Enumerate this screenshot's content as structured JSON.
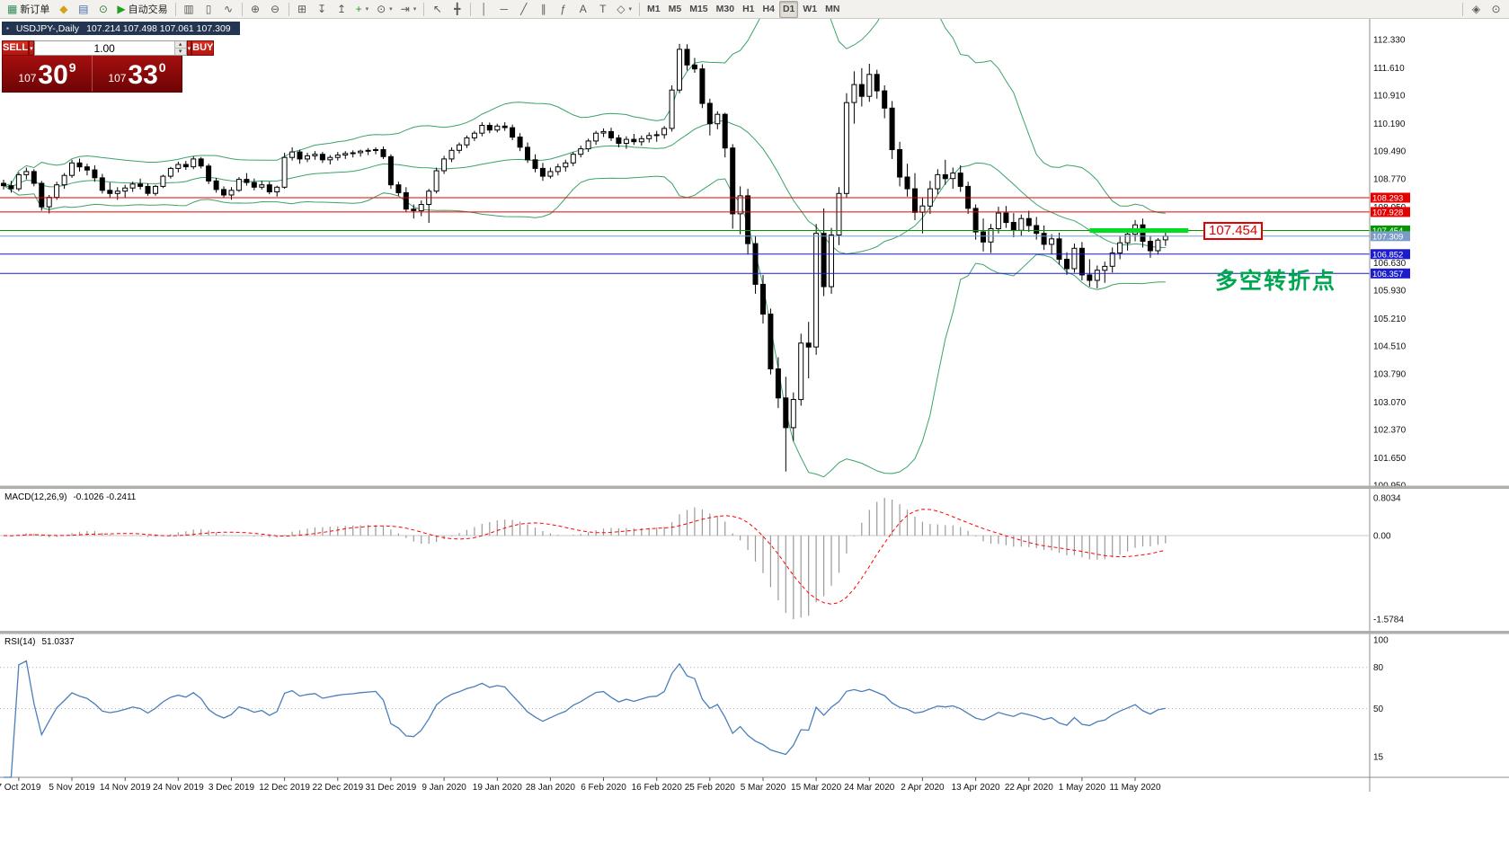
{
  "ui_icons": {
    "chevron_down": "▾",
    "chevron_up": "▴",
    "title_icon": "▪"
  },
  "colors": {
    "line_red": "#e60000",
    "line_green": "#009900",
    "line_blue": "#1c1ccd",
    "bid_label_bg": "#7a9cc6",
    "bands": "#3aa368",
    "rsi": "#4a7ebb",
    "macd_bars": "#9a9a9a",
    "macd_signal": "#ff0000",
    "highlight": "#00dd22",
    "annotation_green": "#00a651",
    "callout_red": "#dd0000"
  },
  "toolbar": {
    "groups": [
      {
        "items": [
          {
            "name": "new-order-button",
            "glyph": "▦",
            "glyph_color": "#2e8b57",
            "label": "新订单"
          },
          {
            "name": "navigator-button",
            "glyph": "◆",
            "glyph_color": "#d4a017"
          },
          {
            "name": "profiles-button",
            "glyph": "▤",
            "glyph_color": "#4a6fa5"
          },
          {
            "name": "refresh-button",
            "glyph": "⊙",
            "glyph_color": "#3a7d3a"
          },
          {
            "name": "autotrading-button",
            "glyph": "▶",
            "glyph_color": "#1fa01f",
            "label": "自动交易"
          }
        ]
      },
      {
        "items": [
          {
            "name": "bar-chart-button",
            "glyph": "▥"
          },
          {
            "name": "candlestick-chart-button",
            "glyph": "▯"
          },
          {
            "name": "line-chart-button",
            "glyph": "∿"
          }
        ]
      },
      {
        "items": [
          {
            "name": "zoom-in-button",
            "glyph": "⊕"
          },
          {
            "name": "zoom-out-button",
            "glyph": "⊖"
          }
        ]
      },
      {
        "items": [
          {
            "name": "tile-windows-button",
            "glyph": "⊞"
          },
          {
            "name": "arrange-down-button",
            "glyph": "↧"
          },
          {
            "name": "arrange-up-button",
            "glyph": "↥"
          },
          {
            "name": "new-chart-button",
            "glyph": "+",
            "glyph_color": "#1fa01f",
            "dropdown": true
          },
          {
            "name": "periods-button",
            "glyph": "⊙",
            "dropdown": true
          },
          {
            "name": "chart-shift-button",
            "glyph": "⇥",
            "dropdown": true
          }
        ]
      },
      {
        "items": [
          {
            "name": "cursor-button",
            "glyph": "↖"
          },
          {
            "name": "crosshair-button",
            "glyph": "╋"
          }
        ]
      },
      {
        "items": [
          {
            "name": "vertical-line-button",
            "glyph": "│"
          },
          {
            "name": "horizontal-line-button",
            "glyph": "─"
          },
          {
            "name": "trendline-button",
            "glyph": "╱"
          },
          {
            "name": "channel-button",
            "glyph": "∥"
          },
          {
            "name": "fibonacci-button",
            "glyph": "ƒ"
          },
          {
            "name": "text-button",
            "glyph": "A"
          },
          {
            "name": "text-label-button",
            "glyph": "T"
          },
          {
            "name": "shapes-button",
            "glyph": "◇",
            "dropdown": true
          }
        ]
      },
      {
        "items": [
          {
            "name": "timeframe-m1-button",
            "text": "M1"
          },
          {
            "name": "timeframe-m5-button",
            "text": "M5"
          },
          {
            "name": "timeframe-m15-button",
            "text": "M15"
          },
          {
            "name": "timeframe-m30-button",
            "text": "M30"
          },
          {
            "name": "timeframe-h1-button",
            "text": "H1"
          },
          {
            "name": "timeframe-h4-button",
            "text": "H4"
          },
          {
            "name": "timeframe-d1-button",
            "text": "D1",
            "active": true
          },
          {
            "name": "timeframe-w1-button",
            "text": "W1"
          },
          {
            "name": "timeframe-mn-button",
            "text": "MN"
          }
        ]
      },
      {
        "spacer": true
      },
      {
        "items": [
          {
            "name": "search-button",
            "glyph": "◈"
          },
          {
            "name": "options-button",
            "glyph": "⊙"
          }
        ]
      }
    ]
  },
  "chart": {
    "title": "USDJPY-,Daily",
    "ohlc": "107.214 107.498 107.061 107.309"
  },
  "trade_panel": {
    "sell_label": "SELL",
    "buy_label": "BUY",
    "volume": "1.00",
    "bid": {
      "int": "107",
      "pips": "30",
      "sup": "9"
    },
    "ask": {
      "int": "107",
      "pips": "33",
      "sup": "0"
    }
  },
  "indicators": {
    "macd": {
      "name": "MACD(12,26,9)",
      "values": "-0.1026 -0.2411",
      "scale": [
        "0.8034",
        "0.00",
        "-1.5784"
      ]
    },
    "rsi": {
      "name": "RSI(14)",
      "values": "51.0337",
      "scale": [
        "100",
        "80",
        "50",
        "15"
      ]
    }
  },
  "annotations": {
    "callout_text": "107.454",
    "pivot_text": "多空转折点",
    "hlines": [
      {
        "price": 108.293,
        "color": "#e60000",
        "label": "108.293"
      },
      {
        "price": 107.928,
        "color": "#e60000",
        "label": "107.928"
      },
      {
        "price": 107.454,
        "color": "#009900",
        "label": "107.454"
      },
      {
        "price": 106.852,
        "color": "#1c1ccd",
        "label": "106.852"
      },
      {
        "price": 106.357,
        "color": "#1c1ccd",
        "label": "106.357"
      }
    ],
    "bid_line": {
      "price": 107.309,
      "label": "107.309",
      "color": "#7a9cc6"
    },
    "highlight_segment": {
      "price": 107.454,
      "from_index": 143,
      "to_index": 156,
      "color": "#00dd22",
      "width": 5
    }
  },
  "chart_data": {
    "type": "candlestick",
    "symbol": "USDJPY-",
    "timeframe": "Daily",
    "ohlc_display": "107.214 107.498 107.061 107.309",
    "y_axis_labels": [
      "112.330",
      "111.610",
      "110.910",
      "110.190",
      "109.490",
      "108.770",
      "108.050",
      "107.330",
      "106.630",
      "105.930",
      "105.210",
      "104.510",
      "103.790",
      "103.070",
      "102.370",
      "101.650",
      "100.950"
    ],
    "x_tick_labels": [
      "7 Oct 2019",
      "5 Nov 2019",
      "14 Nov 2019",
      "24 Nov 2019",
      "3 Dec 2019",
      "12 Dec 2019",
      "22 Dec 2019",
      "31 Dec 2019",
      "9 Jan 2020",
      "19 Jan 2020",
      "28 Jan 2020",
      "6 Feb 2020",
      "16 Feb 2020",
      "25 Feb 2020",
      "5 Mar 2020",
      "15 Mar 2020",
      "24 Mar 2020",
      "2 Apr 2020",
      "13 Apr 2020",
      "22 Apr 2020",
      "1 May 2020",
      "11 May 2020"
    ],
    "first_tick_index": 2,
    "tick_step": 7,
    "candles": [
      [
        108.66,
        108.75,
        108.5,
        108.6
      ],
      [
        108.6,
        108.72,
        108.42,
        108.52
      ],
      [
        108.52,
        108.94,
        108.46,
        108.88
      ],
      [
        108.88,
        109.06,
        108.76,
        108.96
      ],
      [
        108.96,
        109.02,
        108.58,
        108.66
      ],
      [
        108.66,
        108.72,
        107.96,
        108.06
      ],
      [
        108.06,
        108.36,
        107.89,
        108.3
      ],
      [
        108.3,
        108.7,
        108.24,
        108.62
      ],
      [
        108.62,
        108.92,
        108.52,
        108.86
      ],
      [
        108.86,
        109.26,
        108.8,
        109.18
      ],
      [
        109.18,
        109.29,
        108.96,
        109.08
      ],
      [
        109.08,
        109.16,
        108.86,
        109.0
      ],
      [
        109.0,
        109.12,
        108.7,
        108.8
      ],
      [
        108.8,
        108.9,
        108.4,
        108.48
      ],
      [
        108.48,
        108.68,
        108.3,
        108.4
      ],
      [
        108.4,
        108.56,
        108.24,
        108.46
      ],
      [
        108.46,
        108.62,
        108.28,
        108.54
      ],
      [
        108.54,
        108.7,
        108.44,
        108.64
      ],
      [
        108.64,
        108.78,
        108.5,
        108.58
      ],
      [
        108.58,
        108.66,
        108.34,
        108.4
      ],
      [
        108.4,
        108.62,
        108.34,
        108.58
      ],
      [
        108.58,
        108.88,
        108.54,
        108.84
      ],
      [
        108.84,
        109.08,
        108.78,
        109.04
      ],
      [
        109.04,
        109.21,
        108.94,
        109.14
      ],
      [
        109.14,
        109.23,
        109.0,
        109.08
      ],
      [
        109.08,
        109.35,
        109.02,
        109.28
      ],
      [
        109.28,
        109.33,
        109.04,
        109.1
      ],
      [
        109.1,
        109.16,
        108.64,
        108.72
      ],
      [
        108.72,
        108.8,
        108.42,
        108.5
      ],
      [
        108.5,
        108.58,
        108.28,
        108.36
      ],
      [
        108.36,
        108.56,
        108.24,
        108.48
      ],
      [
        108.48,
        108.82,
        108.44,
        108.76
      ],
      [
        108.76,
        108.92,
        108.6,
        108.68
      ],
      [
        108.68,
        108.78,
        108.48,
        108.56
      ],
      [
        108.56,
        108.72,
        108.5,
        108.62
      ],
      [
        108.62,
        108.7,
        108.38,
        108.44
      ],
      [
        108.44,
        108.6,
        108.32,
        108.56
      ],
      [
        108.56,
        109.44,
        108.52,
        109.32
      ],
      [
        109.32,
        109.58,
        109.24,
        109.46
      ],
      [
        109.46,
        109.52,
        109.16,
        109.28
      ],
      [
        109.28,
        109.44,
        109.2,
        109.36
      ],
      [
        109.36,
        109.48,
        109.26,
        109.4
      ],
      [
        109.4,
        109.46,
        109.18,
        109.26
      ],
      [
        109.26,
        109.38,
        109.14,
        109.32
      ],
      [
        109.32,
        109.46,
        109.24,
        109.38
      ],
      [
        109.38,
        109.48,
        109.28,
        109.42
      ],
      [
        109.42,
        109.5,
        109.32,
        109.44
      ],
      [
        109.44,
        109.52,
        109.34,
        109.48
      ],
      [
        109.48,
        109.56,
        109.38,
        109.5
      ],
      [
        109.5,
        109.58,
        109.4,
        109.52
      ],
      [
        109.52,
        109.6,
        109.28,
        109.34
      ],
      [
        109.34,
        109.4,
        108.52,
        108.62
      ],
      [
        108.62,
        108.7,
        108.34,
        108.42
      ],
      [
        108.42,
        108.56,
        107.92,
        108.0
      ],
      [
        108.0,
        108.12,
        107.76,
        107.96
      ],
      [
        107.96,
        108.22,
        107.82,
        108.12
      ],
      [
        108.12,
        108.52,
        107.65,
        108.46
      ],
      [
        108.46,
        109.06,
        108.4,
        108.98
      ],
      [
        108.98,
        109.36,
        108.9,
        109.28
      ],
      [
        109.28,
        109.58,
        109.2,
        109.5
      ],
      [
        109.5,
        109.7,
        109.42,
        109.64
      ],
      [
        109.64,
        109.88,
        109.56,
        109.82
      ],
      [
        109.82,
        110.0,
        109.74,
        109.94
      ],
      [
        109.94,
        110.22,
        109.86,
        110.14
      ],
      [
        110.14,
        110.21,
        109.94,
        110.02
      ],
      [
        110.02,
        110.18,
        109.96,
        110.12
      ],
      [
        110.12,
        110.22,
        110.0,
        110.08
      ],
      [
        110.08,
        110.16,
        109.76,
        109.84
      ],
      [
        109.84,
        109.94,
        109.48,
        109.58
      ],
      [
        109.58,
        109.7,
        109.18,
        109.26
      ],
      [
        109.26,
        109.4,
        108.94,
        109.04
      ],
      [
        109.04,
        109.18,
        108.72,
        108.84
      ],
      [
        108.84,
        109.06,
        108.78,
        108.96
      ],
      [
        108.96,
        109.16,
        108.86,
        109.08
      ],
      [
        109.08,
        109.26,
        108.96,
        109.18
      ],
      [
        109.18,
        109.46,
        109.1,
        109.4
      ],
      [
        109.4,
        109.62,
        109.32,
        109.54
      ],
      [
        109.54,
        109.8,
        109.46,
        109.74
      ],
      [
        109.74,
        110.0,
        109.64,
        109.94
      ],
      [
        109.94,
        110.06,
        109.84,
        109.98
      ],
      [
        109.98,
        110.08,
        109.74,
        109.82
      ],
      [
        109.82,
        109.9,
        109.58,
        109.68
      ],
      [
        109.68,
        109.86,
        109.54,
        109.78
      ],
      [
        109.78,
        109.92,
        109.64,
        109.72
      ],
      [
        109.72,
        109.88,
        109.62,
        109.8
      ],
      [
        109.8,
        109.96,
        109.7,
        109.88
      ],
      [
        109.88,
        110.0,
        109.72,
        109.9
      ],
      [
        109.9,
        110.12,
        109.8,
        110.06
      ],
      [
        110.06,
        111.16,
        109.98,
        111.04
      ],
      [
        111.04,
        112.22,
        110.96,
        112.08
      ],
      [
        112.08,
        112.21,
        111.54,
        111.68
      ],
      [
        111.68,
        111.86,
        111.48,
        111.58
      ],
      [
        111.58,
        111.7,
        110.58,
        110.7
      ],
      [
        110.7,
        110.82,
        109.88,
        110.18
      ],
      [
        110.18,
        110.5,
        110.04,
        110.42
      ],
      [
        110.42,
        110.46,
        109.32,
        109.56
      ],
      [
        109.56,
        109.66,
        107.5,
        107.88
      ],
      [
        107.88,
        108.58,
        107.36,
        108.34
      ],
      [
        108.34,
        108.52,
        106.84,
        107.12
      ],
      [
        107.12,
        107.32,
        105.84,
        106.08
      ],
      [
        106.08,
        106.32,
        105.08,
        105.32
      ],
      [
        105.32,
        105.46,
        103.78,
        103.92
      ],
      [
        103.92,
        104.22,
        102.92,
        103.18
      ],
      [
        103.18,
        103.72,
        101.3,
        102.42
      ],
      [
        102.42,
        103.32,
        102.08,
        103.14
      ],
      [
        103.14,
        104.82,
        102.98,
        104.58
      ],
      [
        104.58,
        105.12,
        103.68,
        104.48
      ],
      [
        104.48,
        107.62,
        104.28,
        107.38
      ],
      [
        107.38,
        108.02,
        105.78,
        106.02
      ],
      [
        106.02,
        107.52,
        105.84,
        107.34
      ],
      [
        107.34,
        108.56,
        107.08,
        108.4
      ],
      [
        108.4,
        110.96,
        108.28,
        110.72
      ],
      [
        110.72,
        111.52,
        110.18,
        111.18
      ],
      [
        111.18,
        111.6,
        110.62,
        110.88
      ],
      [
        110.88,
        111.71,
        110.74,
        111.44
      ],
      [
        111.44,
        111.56,
        110.82,
        111.02
      ],
      [
        111.02,
        111.16,
        110.32,
        110.58
      ],
      [
        110.58,
        110.76,
        109.28,
        109.52
      ],
      [
        109.52,
        109.72,
        108.58,
        108.82
      ],
      [
        108.82,
        109.16,
        108.32,
        108.52
      ],
      [
        108.52,
        108.92,
        107.72,
        107.92
      ],
      [
        107.92,
        108.28,
        107.38,
        108.08
      ],
      [
        108.08,
        108.72,
        107.88,
        108.52
      ],
      [
        108.52,
        109.02,
        108.38,
        108.88
      ],
      [
        108.88,
        109.26,
        108.62,
        108.78
      ],
      [
        108.78,
        109.06,
        108.52,
        108.92
      ],
      [
        108.92,
        109.12,
        108.44,
        108.58
      ],
      [
        108.58,
        108.7,
        107.88,
        108.02
      ],
      [
        108.02,
        108.12,
        107.22,
        107.42
      ],
      [
        107.42,
        107.76,
        106.92,
        107.16
      ],
      [
        107.16,
        107.62,
        106.88,
        107.5
      ],
      [
        107.5,
        108.06,
        107.38,
        107.9
      ],
      [
        107.9,
        108.08,
        107.52,
        107.66
      ],
      [
        107.66,
        107.9,
        107.28,
        107.46
      ],
      [
        107.46,
        107.86,
        107.32,
        107.76
      ],
      [
        107.76,
        107.96,
        107.42,
        107.58
      ],
      [
        107.58,
        107.8,
        107.22,
        107.38
      ],
      [
        107.38,
        107.58,
        106.96,
        107.1
      ],
      [
        107.1,
        107.36,
        106.84,
        107.24
      ],
      [
        107.24,
        107.4,
        106.58,
        106.72
      ],
      [
        106.72,
        106.9,
        106.32,
        106.48
      ],
      [
        106.48,
        107.12,
        106.38,
        107.0
      ],
      [
        107.0,
        107.16,
        106.18,
        106.32
      ],
      [
        106.32,
        106.72,
        106.02,
        106.18
      ],
      [
        106.18,
        106.56,
        105.98,
        106.44
      ],
      [
        106.44,
        106.66,
        106.12,
        106.54
      ],
      [
        106.54,
        107.02,
        106.38,
        106.88
      ],
      [
        106.88,
        107.3,
        106.72,
        107.14
      ],
      [
        107.14,
        107.46,
        106.94,
        107.36
      ],
      [
        107.36,
        107.72,
        107.18,
        107.6
      ],
      [
        107.6,
        107.76,
        107.02,
        107.18
      ],
      [
        107.18,
        107.32,
        106.76,
        106.94
      ],
      [
        106.94,
        107.26,
        106.84,
        107.21
      ],
      [
        107.214,
        107.498,
        107.061,
        107.309
      ]
    ],
    "overlays": [
      {
        "name": "Bollinger Bands",
        "period": 20,
        "deviation": 2
      }
    ]
  }
}
